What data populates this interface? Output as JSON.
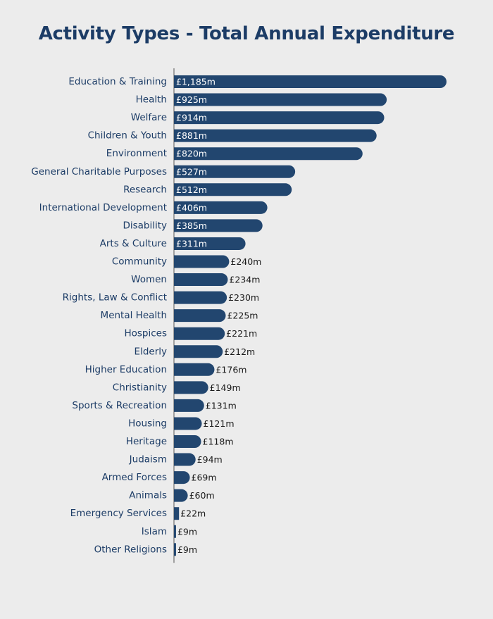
{
  "chart_data": {
    "type": "bar",
    "orientation": "horizontal",
    "title": "Activity Types - Total Annual Expenditure",
    "value_prefix": "£",
    "value_suffix": "m",
    "categories": [
      "Education & Training",
      "Health",
      "Welfare",
      "Children & Youth",
      "Environment",
      "General Charitable Purposes",
      "Research",
      "International Development",
      "Disability",
      "Arts & Culture",
      "Community",
      "Women",
      "Rights, Law & Conflict",
      "Mental Health",
      "Hospices",
      "Elderly",
      "Higher Education",
      "Christianity",
      "Sports & Recreation",
      "Housing",
      "Heritage",
      "Judaism",
      "Armed Forces",
      "Animals",
      "Emergency Services",
      "Islam",
      "Other Religions"
    ],
    "values": [
      1185,
      925,
      914,
      881,
      820,
      527,
      512,
      406,
      385,
      311,
      240,
      234,
      230,
      225,
      221,
      212,
      176,
      149,
      131,
      121,
      118,
      94,
      69,
      60,
      22,
      9,
      9
    ],
    "labels": [
      "£1,185m",
      "£925m",
      "£914m",
      "£881m",
      "£820m",
      "£527m",
      "£512m",
      "£406m",
      "£385m",
      "£311m",
      "£240m",
      "£234m",
      "£230m",
      "£225m",
      "£221m",
      "£212m",
      "£176m",
      "£149m",
      "£131m",
      "£121m",
      "£118m",
      "£94m",
      "£69m",
      "£60m",
      "£22m",
      "£9m",
      "£9m"
    ],
    "xlim": [
      0,
      1185
    ],
    "grid": false,
    "legend": "none",
    "colors": {
      "bar": "#22466f",
      "title": "#1c3c66",
      "category_label": "#1c3c66",
      "label_inside": "#ffffff",
      "label_outside": "#1a1a1a",
      "axis": "#555555",
      "background": "#ececec"
    }
  }
}
